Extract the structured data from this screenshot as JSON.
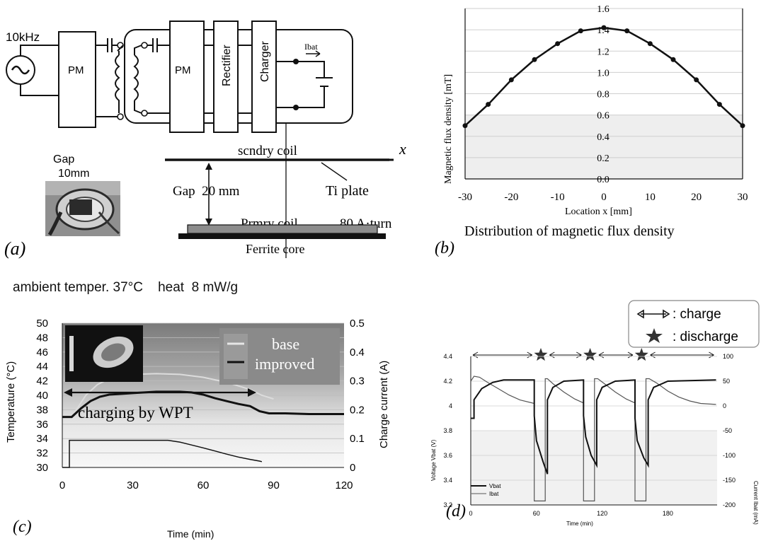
{
  "panel_a": {
    "freq_label": "10kHz",
    "pm1_label": "PM",
    "pm2_label": "PM",
    "rectifier_label": "Rectifier",
    "charger_label": "Charger",
    "ibat_label": "Ibat",
    "photo_caption_line1": "Gap",
    "photo_caption_line2": "10mm",
    "secondary_coil_label": "scndry coil",
    "x_axis_label": "x",
    "gap_label": "Gap  20 mm",
    "ti_plate_label": "Ti plate",
    "primary_coil_label": "Prmry coil",
    "ampere_turn_label": "80 A·turn",
    "ferrite_label": "Ferrite core",
    "panel_letter": "(a)"
  },
  "panel_b": {
    "ylabel": "Magnetic flux density [mT]",
    "xlabel": "Location x [mm]",
    "caption": "Distribution of  magnetic flux density",
    "panel_letter": "(b)"
  },
  "panel_c": {
    "header": "ambient temper. 37°C    heat  8 mW/g",
    "ylabel_left": "Temperature (°C)",
    "ylabel_right": "Charge current (A)",
    "xlabel": "Time (min)",
    "legend_base": "base",
    "legend_improved": "improved",
    "charging_label": "charging by WPT",
    "panel_letter": "(c)"
  },
  "panel_d": {
    "legend_charge": ": charge",
    "legend_discharge": ": discharge",
    "ylabel_left": "Voltage  Vbat (V)",
    "ylabel_right": "Current  Ibat (mA)",
    "xlabel": "Time (min)",
    "series_vbat": "Vbat",
    "series_ibat": "Ibat",
    "panel_letter": "(d)"
  },
  "chart_data": [
    {
      "type": "line",
      "id": "b",
      "x": [
        -30,
        -25,
        -20,
        -15,
        -10,
        -5,
        0,
        5,
        10,
        15,
        20,
        25,
        30
      ],
      "y": [
        0.5,
        0.7,
        0.93,
        1.12,
        1.27,
        1.39,
        1.42,
        1.39,
        1.27,
        1.12,
        0.93,
        0.7,
        0.5
      ],
      "xticks": [
        "-30",
        "-20",
        "-10",
        "0",
        "10",
        "20",
        "30"
      ],
      "yticks": [
        "0.0",
        "0.2",
        "0.4",
        "0.6",
        "0.8",
        "1.0",
        "1.2",
        "1.4",
        "1.6"
      ],
      "xlim": [
        -30,
        30
      ],
      "ylim": [
        0,
        1.6
      ]
    },
    {
      "type": "line",
      "id": "c",
      "xticks": [
        "0",
        "30",
        "60",
        "90",
        "120"
      ],
      "yticks_left": [
        "30",
        "32",
        "34",
        "36",
        "38",
        "40",
        "42",
        "44",
        "46",
        "48",
        "50"
      ],
      "yticks_right": [
        "0",
        "0.1",
        "0.2",
        "0.3",
        "0.4",
        "0.5"
      ],
      "xlim": [
        0,
        120
      ],
      "ylim_left": [
        30,
        50
      ],
      "ylim_right": [
        0,
        0.5
      ],
      "series": [
        {
          "name": "improved",
          "axis": "left",
          "x": [
            0,
            4,
            8,
            12,
            16,
            20,
            25,
            30,
            35,
            40,
            45,
            50,
            55,
            60,
            65,
            70,
            75,
            80,
            84,
            88,
            95,
            105,
            120
          ],
          "y": [
            37.0,
            37.0,
            38.2,
            39.2,
            39.8,
            40.1,
            40.2,
            40.3,
            40.4,
            40.5,
            40.5,
            40.5,
            40.4,
            40.1,
            39.6,
            39.2,
            38.8,
            38.5,
            37.8,
            37.5,
            37.5,
            37.4,
            37.4
          ]
        },
        {
          "name": "base",
          "axis": "left",
          "x": [
            4,
            10,
            15,
            20,
            25,
            30,
            40,
            50,
            60,
            70,
            80,
            85,
            90
          ],
          "y": [
            37.0,
            40.0,
            41.5,
            42.3,
            42.7,
            42.9,
            43.0,
            42.9,
            42.5,
            41.8,
            40.8,
            40.0,
            39.5
          ]
        },
        {
          "name": "charge current",
          "axis": "right",
          "x": [
            0,
            3,
            3,
            45,
            50,
            55,
            60,
            65,
            70,
            75,
            80,
            84,
            85
          ],
          "y": [
            0,
            0,
            0.094,
            0.094,
            0.088,
            0.078,
            0.068,
            0.057,
            0.046,
            0.036,
            0.028,
            0.022,
            0.02
          ]
        }
      ]
    },
    {
      "type": "line",
      "id": "d",
      "xticks": [
        "0",
        "60",
        "120",
        "180"
      ],
      "yticks_left": [
        "3.2",
        "3.4",
        "3.6",
        "3.8",
        "4",
        "4.2",
        "4.4"
      ],
      "yticks_right": [
        "-200",
        "-150",
        "-100",
        "-50",
        "0",
        "50",
        "100"
      ],
      "xlim": [
        0,
        225
      ],
      "ylim_left": [
        3.2,
        4.4
      ],
      "ylim_right": [
        -200,
        100
      ],
      "series": [
        {
          "name": "Vbat",
          "axis": "left",
          "x": [
            0,
            3,
            3,
            10,
            20,
            30,
            45,
            58,
            58,
            60,
            66,
            70,
            70,
            75,
            85,
            103,
            103,
            105,
            110,
            115,
            115,
            120,
            132,
            150,
            150,
            152,
            158,
            162,
            162,
            167,
            180,
            224
          ],
          "y": [
            3.9,
            3.9,
            4.05,
            4.14,
            4.19,
            4.21,
            4.21,
            4.21,
            3.92,
            3.72,
            3.55,
            3.45,
            4.05,
            4.15,
            4.2,
            4.21,
            3.92,
            3.75,
            3.6,
            3.52,
            4.05,
            4.15,
            4.2,
            4.21,
            3.9,
            3.72,
            3.58,
            3.52,
            4.05,
            4.15,
            4.2,
            4.21
          ]
        },
        {
          "name": "Ibat",
          "axis": "right",
          "x": [
            0,
            3,
            8,
            15,
            25,
            35,
            45,
            58,
            58,
            68,
            68,
            70,
            75,
            85,
            95,
            103,
            103,
            113,
            113,
            116,
            122,
            132,
            142,
            150,
            150,
            160,
            160,
            163,
            170,
            180,
            190,
            200,
            210,
            224
          ],
          "y": [
            50,
            60,
            58,
            48,
            35,
            22,
            12,
            5,
            -192,
            -192,
            55,
            55,
            45,
            28,
            14,
            6,
            -192,
            -192,
            55,
            55,
            45,
            28,
            14,
            6,
            -192,
            -192,
            55,
            55,
            46,
            30,
            18,
            10,
            5,
            3
          ]
        }
      ]
    }
  ],
  "colors": {
    "panel_c_background_top": "#7f7f7f",
    "panel_c_background_bottom": "#f4f4f4",
    "grid": "#bdbdbd",
    "line": "#111111",
    "base_line": "#d9d9d9"
  }
}
